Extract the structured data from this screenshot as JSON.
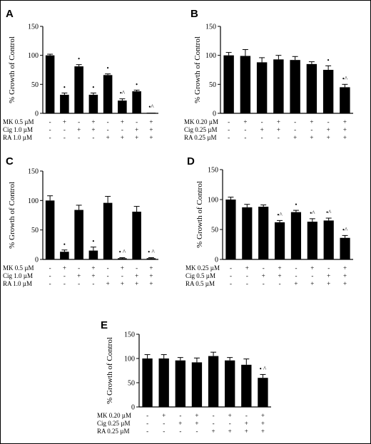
{
  "ylabel": "% Growth of Control",
  "chart_data": [
    {
      "panel": "A",
      "type": "bar",
      "ylim": [
        0,
        150
      ],
      "yticks": [
        0,
        50,
        100,
        150
      ],
      "values": [
        100,
        32,
        81,
        32,
        66,
        22,
        38,
        1
      ],
      "errors": [
        2,
        3,
        3,
        3,
        2,
        3,
        2,
        0
      ],
      "markers": [
        "",
        "•",
        "•",
        "•",
        "•",
        "•^",
        "•",
        "•^"
      ],
      "treatments": [
        {
          "label": "MK 0.5 µM",
          "signs": [
            "-",
            "+",
            "-",
            "+",
            "-",
            "+",
            "-",
            "+"
          ]
        },
        {
          "label": "Cig 1.0 µM",
          "signs": [
            "-",
            "-",
            "+",
            "+",
            "-",
            "-",
            "+",
            "+"
          ]
        },
        {
          "label": "RA 1.0 µM",
          "signs": [
            "-",
            "-",
            "-",
            "-",
            "+",
            "+",
            "+",
            "+"
          ]
        }
      ]
    },
    {
      "panel": "B",
      "type": "bar",
      "ylim": [
        0,
        150
      ],
      "yticks": [
        0,
        50,
        100,
        150
      ],
      "values": [
        100,
        99,
        88,
        93,
        92,
        85,
        75,
        45
      ],
      "errors": [
        5,
        11,
        8,
        7,
        6,
        4,
        7,
        5
      ],
      "markers": [
        "",
        "",
        "",
        "",
        "",
        "",
        "•",
        "•^"
      ],
      "treatments": [
        {
          "label": "MK 0.20 µM",
          "signs": [
            "-",
            "+",
            "-",
            "+",
            "-",
            "+",
            "-",
            "+"
          ]
        },
        {
          "label": "Cig 0.25 µM",
          "signs": [
            "-",
            "-",
            "+",
            "+",
            "-",
            "-",
            "+",
            "+"
          ]
        },
        {
          "label": "RA 0.25 µM",
          "signs": [
            "-",
            "-",
            "-",
            "-",
            "+",
            "+",
            "+",
            "+"
          ]
        }
      ]
    },
    {
      "panel": "C",
      "type": "bar",
      "ylim": [
        0,
        150
      ],
      "yticks": [
        0,
        50,
        100,
        150
      ],
      "values": [
        100,
        13,
        84,
        15,
        96,
        2,
        81,
        2
      ],
      "errors": [
        8,
        3,
        8,
        6,
        11,
        1,
        9,
        1
      ],
      "markers": [
        "",
        "•",
        "",
        "•",
        "",
        "• ^",
        "",
        "• ^"
      ],
      "treatments": [
        {
          "label": "MK 0.5 µM",
          "signs": [
            "-",
            "+",
            "-",
            "+",
            "-",
            "+",
            "-",
            "+"
          ]
        },
        {
          "label": "Cig 1.0 µM",
          "signs": [
            "-",
            "-",
            "+",
            "+",
            "-",
            "-",
            "+",
            "+"
          ]
        },
        {
          "label": "RA 1.0 µM",
          "signs": [
            "-",
            "-",
            "-",
            "-",
            "+",
            "+",
            "+",
            "+"
          ]
        }
      ]
    },
    {
      "panel": "D",
      "type": "bar",
      "ylim": [
        0,
        150
      ],
      "yticks": [
        0,
        50,
        100,
        150
      ],
      "values": [
        100,
        87,
        88,
        62,
        79,
        63,
        65,
        36
      ],
      "errors": [
        4,
        5,
        3,
        3,
        3,
        5,
        4,
        4
      ],
      "markers": [
        "",
        "",
        "",
        "•^",
        "•",
        "•^",
        "•^",
        "•^"
      ],
      "treatments": [
        {
          "label": "MK 0.25 µM",
          "signs": [
            "-",
            "+",
            "-",
            "+",
            "-",
            "+",
            "-",
            "+"
          ]
        },
        {
          "label": "Cig 0.5 µM",
          "signs": [
            "-",
            "-",
            "+",
            "+",
            "-",
            "-",
            "+",
            "+"
          ]
        },
        {
          "label": "RA 0.5 µM",
          "signs": [
            "-",
            "-",
            "-",
            "-",
            "+",
            "+",
            "+",
            "+"
          ]
        }
      ]
    },
    {
      "panel": "E",
      "type": "bar",
      "ylim": [
        0,
        150
      ],
      "yticks": [
        0,
        50,
        100,
        150
      ],
      "values": [
        100,
        100,
        96,
        92,
        105,
        96,
        87,
        60
      ],
      "errors": [
        8,
        8,
        6,
        9,
        8,
        6,
        12,
        7
      ],
      "markers": [
        "",
        "",
        "",
        "",
        "",
        "",
        "",
        "• ^"
      ],
      "treatments": [
        {
          "label": "MK 0.20 µM",
          "signs": [
            "-",
            "+",
            "-",
            "+",
            "-",
            "+",
            "-",
            "+"
          ]
        },
        {
          "label": "Cig 0.25 µM",
          "signs": [
            "-",
            "-",
            "+",
            "+",
            "-",
            "-",
            "+",
            "+"
          ]
        },
        {
          "label": "RA 0.25 µM",
          "signs": [
            "-",
            "-",
            "-",
            "-",
            "+",
            "+",
            "+",
            "+"
          ]
        }
      ]
    }
  ]
}
